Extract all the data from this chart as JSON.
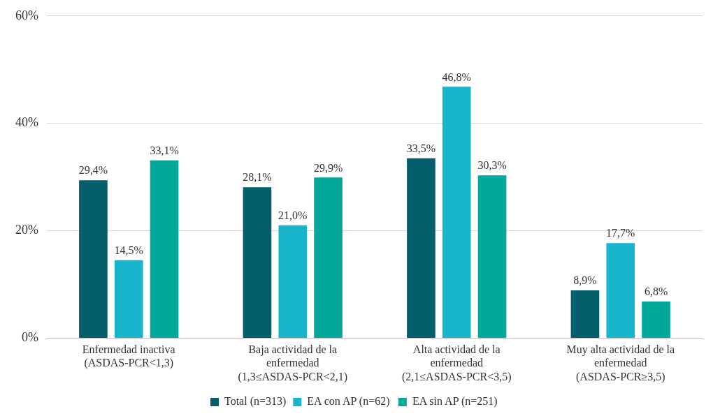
{
  "chart_data": {
    "type": "bar",
    "categories": [
      "Enfermedad inactiva (ASDAS-PCR<1,3)",
      "Baja actividad de la enfermedad (1,3≤ASDAS-PCR<2,1)",
      "Alta actividad de la enfermedad (2,1≤ASDAS-PCR<3,5)",
      "Muy alta actividad de la enfermedad (ASDAS-PCR≥3,5)"
    ],
    "series": [
      {
        "name": "Total (n=313)",
        "color": "#045e6b",
        "values": [
          29.4,
          28.1,
          33.5,
          8.9
        ],
        "value_labels": [
          "29,4%",
          "28,1%",
          "33,5%",
          "8,9%"
        ]
      },
      {
        "name": "EA con AP (n=62)",
        "color": "#18b4cc",
        "values": [
          14.5,
          21.0,
          46.8,
          17.7
        ],
        "value_labels": [
          "14,5%",
          "21,0%",
          "46,8%",
          "17,7%"
        ]
      },
      {
        "name": "EA sin AP (n=251)",
        "color": "#03a89c",
        "values": [
          33.1,
          29.9,
          30.3,
          6.8
        ],
        "value_labels": [
          "33,1%",
          "29,9%",
          "30,3%",
          "6,8%"
        ]
      }
    ],
    "ylim": [
      0,
      60
    ],
    "yticks": [
      {
        "value": 0,
        "label": "0%"
      },
      {
        "value": 20,
        "label": "20%"
      },
      {
        "value": 40,
        "label": "40%"
      },
      {
        "value": 60,
        "label": "60%"
      }
    ],
    "grid": "y",
    "legend": "bottom"
  }
}
